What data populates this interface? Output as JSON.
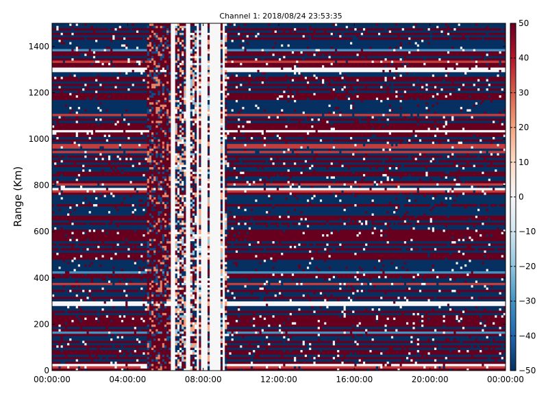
{
  "chart_data": {
    "type": "heatmap",
    "title": "Channel 1: 2018/08/24 23:53:35",
    "xlabel": "",
    "ylabel": "Range (Km)",
    "x_ticks": [
      "00:00:00",
      "04:00:00",
      "08:00:00",
      "12:00:00",
      "16:00:00",
      "20:00:00",
      "00:00:00"
    ],
    "xlim_hours": [
      0,
      24
    ],
    "y_ticks": [
      0,
      200,
      400,
      600,
      800,
      1000,
      1200,
      1400
    ],
    "ylim": [
      0,
      1500
    ],
    "colorbar": {
      "colormap": "RdBu_r",
      "range": [
        -50,
        50
      ],
      "ticks": [
        "50",
        "40",
        "30",
        "20",
        "10",
        "0",
        "−10",
        "−20",
        "−30",
        "−40",
        "−50"
      ]
    },
    "grid": false,
    "pattern": {
      "description_of_values": "horizontal range-banded values saturated near +50 (dark red) and -50 (dark blue); noisy, mostly near-zero band between roughly 06:00 and 09:30",
      "noisy_interval_hours": [
        6.3,
        9.3
      ],
      "blank_columns_hours": [
        6.4,
        7.1,
        7.2,
        7.7,
        8.0,
        8.15,
        8.45,
        8.6,
        8.75,
        8.9,
        9.1
      ]
    }
  }
}
